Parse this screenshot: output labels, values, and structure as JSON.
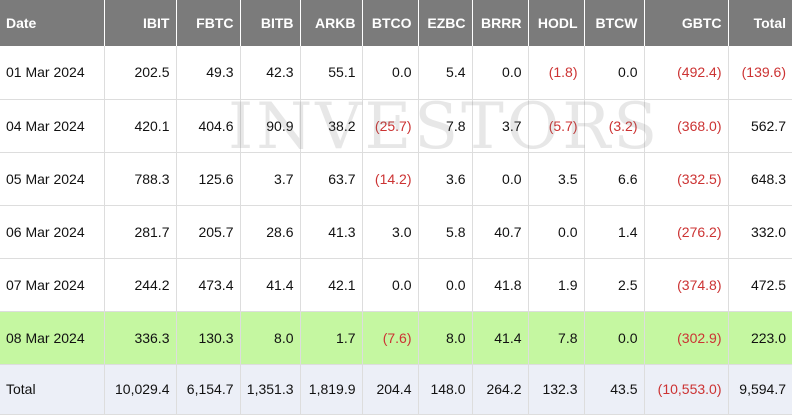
{
  "table": {
    "headers": [
      "Date",
      "IBIT",
      "FBTC",
      "BITB",
      "ARKB",
      "BTCO",
      "EZBC",
      "BRRR",
      "HODL",
      "BTCW",
      "GBTC",
      "Total"
    ],
    "rows": [
      {
        "cells": [
          "01 Mar 2024",
          "202.5",
          "49.3",
          "42.3",
          "55.1",
          "0.0",
          "5.4",
          "0.0",
          "(1.8)",
          "0.0",
          "(492.4)",
          "(139.6)"
        ]
      },
      {
        "cells": [
          "04 Mar 2024",
          "420.1",
          "404.6",
          "90.9",
          "38.2",
          "(25.7)",
          "7.8",
          "3.7",
          "(5.7)",
          "(3.2)",
          "(368.0)",
          "562.7"
        ]
      },
      {
        "cells": [
          "05 Mar 2024",
          "788.3",
          "125.6",
          "3.7",
          "63.7",
          "(14.2)",
          "3.6",
          "0.0",
          "3.5",
          "6.6",
          "(332.5)",
          "648.3"
        ]
      },
      {
        "cells": [
          "06 Mar 2024",
          "281.7",
          "205.7",
          "28.6",
          "41.3",
          "3.0",
          "5.8",
          "40.7",
          "0.0",
          "1.4",
          "(276.2)",
          "332.0"
        ]
      },
      {
        "cells": [
          "07 Mar 2024",
          "244.2",
          "473.4",
          "41.4",
          "42.1",
          "0.0",
          "0.0",
          "41.8",
          "1.9",
          "2.5",
          "(374.8)",
          "472.5"
        ]
      },
      {
        "cells": [
          "08 Mar 2024",
          "336.3",
          "130.3",
          "8.0",
          "1.7",
          "(7.6)",
          "8.0",
          "41.4",
          "7.8",
          "0.0",
          "(302.9)",
          "223.0"
        ]
      }
    ],
    "total": {
      "cells": [
        "Total",
        "10,029.4",
        "6,154.7",
        "1,351.3",
        "1,819.9",
        "204.4",
        "148.0",
        "264.2",
        "132.3",
        "43.5",
        "(10,553.0)",
        "9,594.7"
      ]
    }
  },
  "watermark": "INVESTORS",
  "colors": {
    "header_bg": "#7b7b7b",
    "highlight_row": "#c5f7a1",
    "total_row": "#eceff7",
    "negative_text": "#cc3333"
  }
}
